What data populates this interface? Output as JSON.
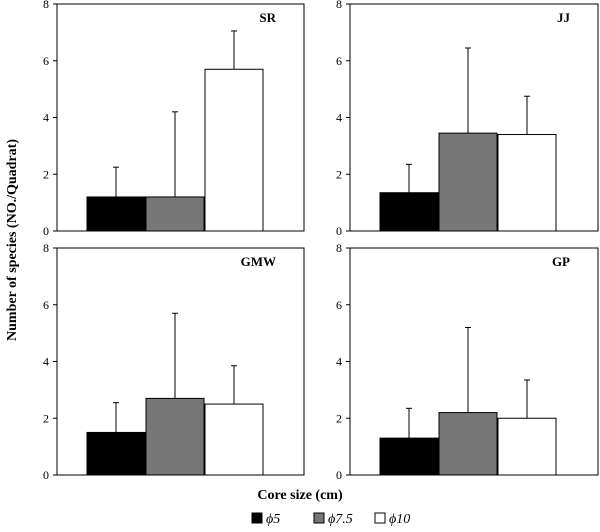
{
  "chart_data": {
    "type": "bar",
    "xlabel": "Core size (cm)",
    "ylabel": "Number of species (NO./Quadrat)",
    "ylim": [
      0,
      8
    ],
    "yticks": [
      "0",
      "2",
      "4",
      "6",
      "8"
    ],
    "legend": {
      "placement": "bottom",
      "entries": [
        {
          "label": "ϕ5",
          "color": "#000000"
        },
        {
          "label": "ϕ7.5",
          "color": "#777777"
        },
        {
          "label": "ϕ10",
          "color": "#ffffff"
        }
      ]
    },
    "panels": [
      {
        "label": "SR",
        "values": [
          1.2,
          1.2,
          5.7
        ],
        "errors": [
          1.05,
          3.0,
          1.35
        ]
      },
      {
        "label": "JJ",
        "values": [
          1.35,
          3.45,
          3.4
        ],
        "errors": [
          1.0,
          3.0,
          1.35
        ]
      },
      {
        "label": "GMW",
        "values": [
          1.5,
          2.7,
          2.5
        ],
        "errors": [
          1.05,
          3.0,
          1.35
        ]
      },
      {
        "label": "GP",
        "values": [
          1.3,
          2.2,
          2.0
        ],
        "errors": [
          1.05,
          3.0,
          1.35
        ]
      }
    ]
  }
}
